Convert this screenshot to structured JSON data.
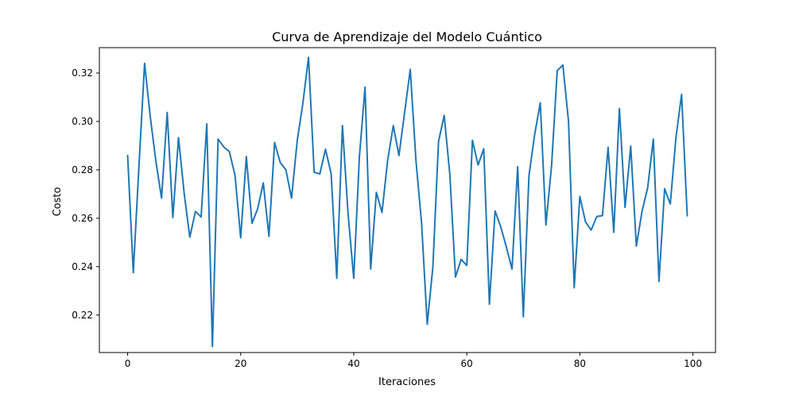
{
  "chart_data": {
    "type": "line",
    "title": "Curva de Aprendizaje del Modelo Cuántico",
    "xlabel": "Iteraciones",
    "ylabel": "Costo",
    "xlim": [
      -5,
      104
    ],
    "ylim": [
      0.2045,
      0.3305
    ],
    "xticks": [
      0,
      20,
      40,
      60,
      80,
      100
    ],
    "yticks": [
      0.22,
      0.24,
      0.26,
      0.28,
      0.3,
      0.32
    ],
    "xtick_labels": [
      "0",
      "20",
      "40",
      "60",
      "80",
      "100"
    ],
    "ytick_labels": [
      "0.22",
      "0.24",
      "0.26",
      "0.28",
      "0.30",
      "0.32"
    ],
    "grid": false,
    "line_color": "#1f77b4",
    "series": [
      {
        "x": [
          0,
          1,
          2,
          3,
          4,
          5,
          6,
          7,
          8,
          9,
          10,
          11,
          12,
          13,
          14,
          15,
          16,
          17,
          18,
          19,
          20,
          21,
          22,
          23,
          24,
          25,
          26,
          27,
          28,
          29,
          30,
          31,
          32,
          33,
          34,
          35,
          36,
          37,
          38,
          39,
          40,
          41,
          42,
          43,
          44,
          45,
          46,
          47,
          48,
          49,
          50,
          51,
          52,
          53,
          54,
          55,
          56,
          57,
          58,
          59,
          60,
          61,
          62,
          63,
          64,
          65,
          66,
          67,
          68,
          69,
          70,
          71,
          72,
          73,
          74,
          75,
          76,
          77,
          78,
          79,
          80,
          81,
          82,
          83,
          84,
          85,
          86,
          87,
          88,
          89,
          90,
          91,
          92,
          93,
          94,
          95,
          96,
          97,
          98,
          99
        ],
        "values": [
          0.2859,
          0.2375,
          0.2815,
          0.324,
          0.302,
          0.2835,
          0.2683,
          0.3037,
          0.2603,
          0.2933,
          0.2703,
          0.2522,
          0.2628,
          0.2605,
          0.299,
          0.207,
          0.2927,
          0.2895,
          0.2875,
          0.2777,
          0.2519,
          0.2855,
          0.2579,
          0.2639,
          0.2746,
          0.2525,
          0.2913,
          0.283,
          0.28,
          0.2683,
          0.292,
          0.3075,
          0.3265,
          0.279,
          0.2783,
          0.2885,
          0.2785,
          0.2352,
          0.2983,
          0.2617,
          0.2352,
          0.2853,
          0.3142,
          0.239,
          0.2707,
          0.2624,
          0.2839,
          0.2983,
          0.2859,
          0.3037,
          0.3215,
          0.284,
          0.258,
          0.2162,
          0.2399,
          0.2917,
          0.3025,
          0.2781,
          0.2357,
          0.243,
          0.2405,
          0.2922,
          0.282,
          0.2887,
          0.2245,
          0.263,
          0.2565,
          0.2481,
          0.239,
          0.2813,
          0.2193,
          0.2776,
          0.2945,
          0.3077,
          0.2572,
          0.2818,
          0.321,
          0.3233,
          0.3,
          0.2313,
          0.269,
          0.2585,
          0.2551,
          0.2607,
          0.2611,
          0.2893,
          0.2542,
          0.3053,
          0.2645,
          0.2898,
          0.2485,
          0.2628,
          0.2726,
          0.2927,
          0.2339,
          0.2722,
          0.2659,
          0.2932,
          0.3112,
          0.261
        ]
      }
    ]
  }
}
